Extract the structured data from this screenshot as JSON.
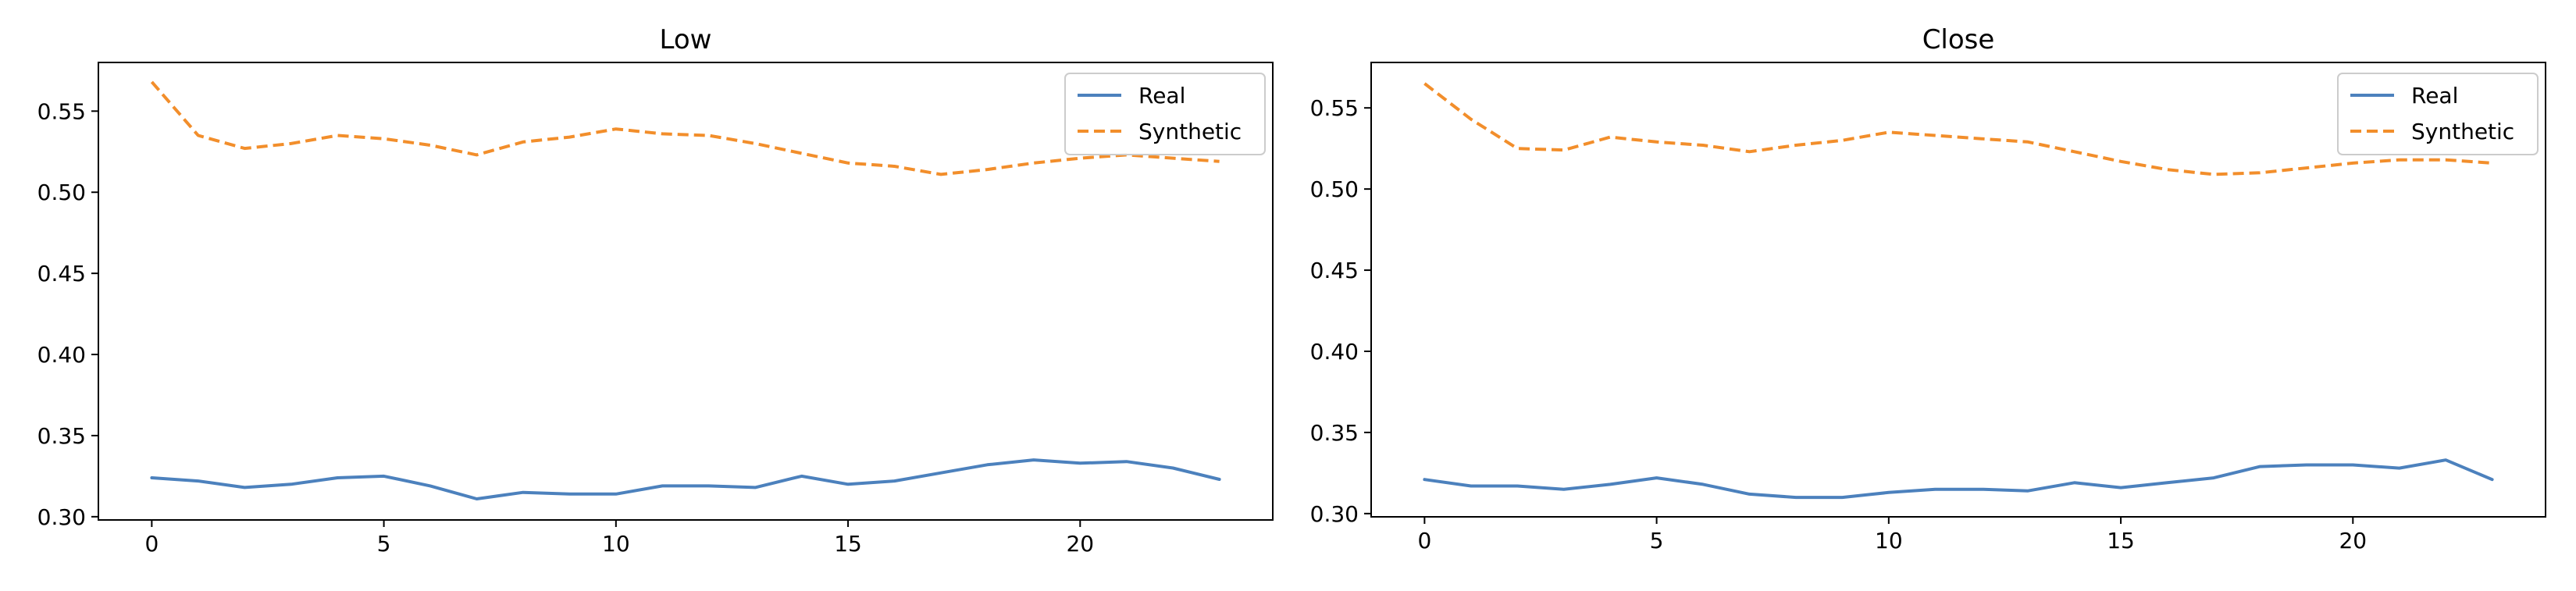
{
  "colors": {
    "real": "#4c81bd",
    "synthetic": "#f28e2b",
    "axis": "#000000",
    "background": "#ffffff"
  },
  "chart_data": [
    {
      "type": "line",
      "title": "Low",
      "xlabel": "",
      "ylabel": "",
      "x": [
        0,
        1,
        2,
        3,
        4,
        5,
        6,
        7,
        8,
        9,
        10,
        11,
        12,
        13,
        14,
        15,
        16,
        17,
        18,
        19,
        20,
        21,
        22,
        23
      ],
      "xlim": [
        -1.15,
        24.15
      ],
      "ylim": [
        0.298,
        0.58
      ],
      "xticks": [
        0,
        5,
        10,
        15,
        20
      ],
      "yticks": [
        0.3,
        0.35,
        0.4,
        0.45,
        0.5,
        0.55
      ],
      "ytick_labels": [
        "0.30",
        "0.35",
        "0.40",
        "0.45",
        "0.50",
        "0.55"
      ],
      "legend": {
        "position": "top-right",
        "entries": [
          "Real",
          "Synthetic"
        ]
      },
      "grid": false,
      "series": [
        {
          "name": "Real",
          "style": "solid",
          "values": [
            0.324,
            0.322,
            0.318,
            0.32,
            0.324,
            0.325,
            0.319,
            0.311,
            0.315,
            0.314,
            0.314,
            0.319,
            0.319,
            0.318,
            0.325,
            0.32,
            0.322,
            0.327,
            0.332,
            0.335,
            0.333,
            0.334,
            0.33,
            0.323
          ]
        },
        {
          "name": "Synthetic",
          "style": "dashed",
          "values": [
            0.568,
            0.535,
            0.527,
            0.53,
            0.535,
            0.533,
            0.529,
            0.523,
            0.531,
            0.534,
            0.539,
            0.536,
            0.535,
            0.53,
            0.524,
            0.518,
            0.516,
            0.511,
            0.514,
            0.518,
            0.521,
            0.523,
            0.521,
            0.519
          ]
        }
      ]
    },
    {
      "type": "line",
      "title": "Close",
      "xlabel": "",
      "ylabel": "",
      "x": [
        0,
        1,
        2,
        3,
        4,
        5,
        6,
        7,
        8,
        9,
        10,
        11,
        12,
        13,
        14,
        15,
        16,
        17,
        18,
        19,
        20,
        21,
        22,
        23
      ],
      "xlim": [
        -1.15,
        24.15
      ],
      "ylim": [
        0.298,
        0.578
      ],
      "xticks": [
        0,
        5,
        10,
        15,
        20
      ],
      "yticks": [
        0.3,
        0.35,
        0.4,
        0.45,
        0.5,
        0.55
      ],
      "ytick_labels": [
        "0.30",
        "0.35",
        "0.40",
        "0.45",
        "0.50",
        "0.55"
      ],
      "legend": {
        "position": "top-right",
        "entries": [
          "Real",
          "Synthetic"
        ]
      },
      "grid": false,
      "series": [
        {
          "name": "Real",
          "style": "solid",
          "values": [
            0.321,
            0.317,
            0.317,
            0.315,
            0.318,
            0.322,
            0.318,
            0.312,
            0.31,
            0.31,
            0.313,
            0.315,
            0.315,
            0.314,
            0.319,
            0.316,
            0.319,
            0.322,
            0.329,
            0.33,
            0.33,
            0.328,
            0.333,
            0.321
          ]
        },
        {
          "name": "Synthetic",
          "style": "dashed",
          "values": [
            0.565,
            0.543,
            0.525,
            0.524,
            0.532,
            0.529,
            0.527,
            0.523,
            0.527,
            0.53,
            0.535,
            0.533,
            0.531,
            0.529,
            0.523,
            0.517,
            0.512,
            0.509,
            0.51,
            0.513,
            0.516,
            0.518,
            0.518,
            0.516
          ]
        }
      ]
    }
  ]
}
